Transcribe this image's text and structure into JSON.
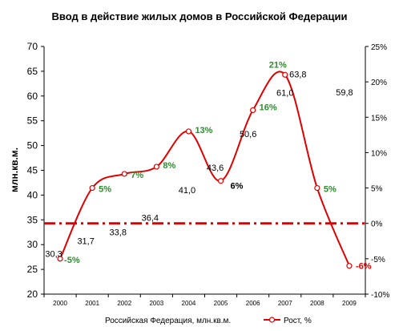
{
  "chart_data": {
    "type": "line",
    "title": "Ввод в действие жилых домов в Российской Федерации",
    "ylabel": "млн.кв.м.",
    "categories": [
      "2000",
      "2001",
      "2002",
      "2003",
      "2004",
      "2005",
      "2006",
      "2007",
      "2008",
      "2009"
    ],
    "ylim": [
      20,
      70
    ],
    "yticks": [
      "20",
      "25",
      "30",
      "35",
      "40",
      "45",
      "50",
      "55",
      "60",
      "65",
      "70"
    ],
    "y2lim": [
      -10,
      25
    ],
    "y2ticks": [
      "-10%",
      "-5%",
      "0%",
      "5%",
      "10%",
      "15%",
      "20%",
      "25%"
    ],
    "series": [
      {
        "name": "Российская Федерация, млн.кв.м.",
        "axis": "left",
        "values": [
          30.3,
          31.7,
          33.8,
          36.4,
          41.0,
          43.6,
          50.6,
          61.0,
          63.8,
          59.8
        ],
        "labels": [
          "30,3",
          "31,7",
          "33,8",
          "36,4",
          "41,0",
          "43,6",
          "50,6",
          "61,0",
          "63,8",
          "59,8"
        ],
        "color": "#ffffff"
      },
      {
        "name": "Рост, %",
        "axis": "right",
        "values": [
          -5,
          5,
          7,
          8,
          13,
          6,
          16,
          21,
          5,
          -6
        ],
        "labels": [
          "-5%",
          "5%",
          "7%",
          "8%",
          "13%",
          "6%",
          "16%",
          "21%",
          "5%",
          "-6%"
        ],
        "label_colors": [
          "#2e8b2e",
          "#2e8b2e",
          "#2e8b2e",
          "#2e8b2e",
          "#2e8b2e",
          "#000000",
          "#2e8b2e",
          "#2e8b2e",
          "#2e8b2e",
          "#e00000"
        ],
        "color": "#e00000"
      }
    ],
    "reference_line": {
      "axis": "right",
      "value": 0,
      "color": "#e00000",
      "style": "dash-dot"
    },
    "grid": false,
    "legend": "bottom"
  }
}
